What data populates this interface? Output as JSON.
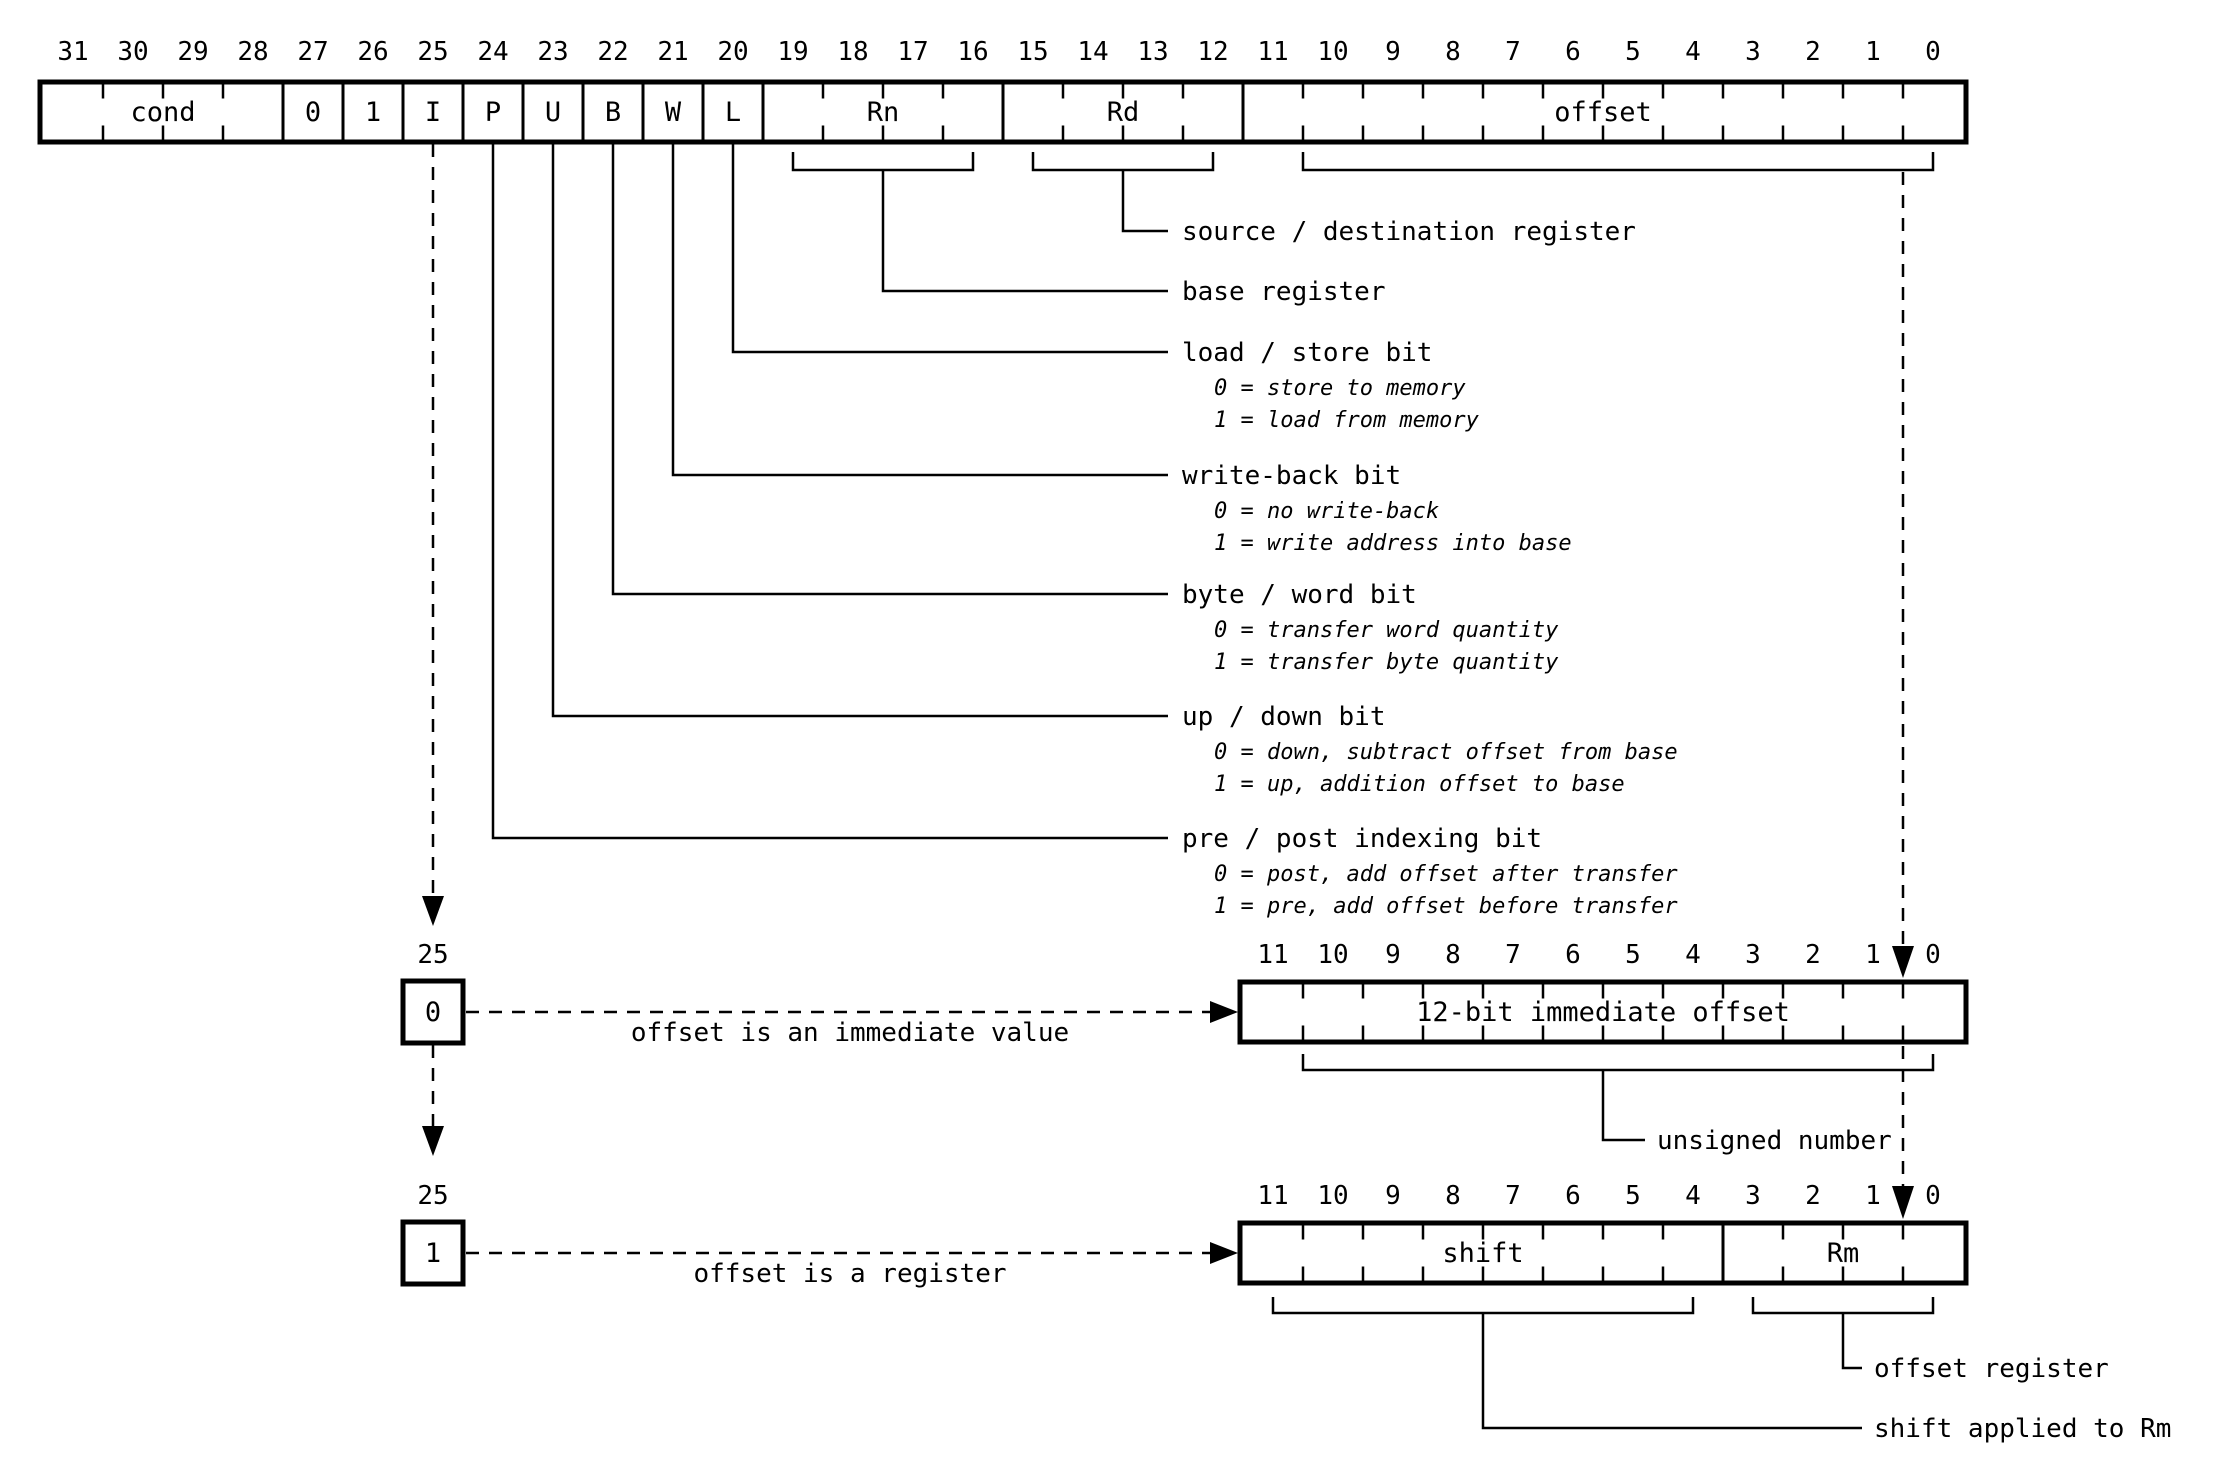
{
  "diagram": {
    "colors": {
      "ink": "#000000",
      "background": "#ffffff"
    },
    "instruction": {
      "bit_numbers": [
        "31",
        "30",
        "29",
        "28",
        "27",
        "26",
        "25",
        "24",
        "23",
        "22",
        "21",
        "20",
        "19",
        "18",
        "17",
        "16",
        "15",
        "14",
        "13",
        "12",
        "11",
        "10",
        "9",
        "8",
        "7",
        "6",
        "5",
        "4",
        "3",
        "2",
        "1",
        "0"
      ],
      "fields": {
        "cond": "cond",
        "b27": "0",
        "b26": "1",
        "i": "I",
        "p": "P",
        "u": "U",
        "b": "B",
        "w": "W",
        "l": "L",
        "rn": "Rn",
        "rd": "Rd",
        "offset": "offset"
      },
      "annotations": {
        "rd": "source / destination register",
        "rn": "base register",
        "l_title": "load / store bit",
        "l_opt0": "0 = store to memory",
        "l_opt1": "1 = load from memory",
        "w_title": "write-back bit",
        "w_opt0": "0 = no write-back",
        "w_opt1": "1 = write address into base",
        "b_title": "byte / word bit",
        "b_opt0": "0 = transfer word quantity",
        "b_opt1": "1 = transfer byte quantity",
        "u_title": "up / down bit",
        "u_opt0": "0 = down, subtract offset from base",
        "u_opt1": "1 = up, addition offset to base",
        "p_title": "pre / post indexing bit",
        "p_opt0": "0 = post, add offset after transfer",
        "p_opt1": "1 = pre, add offset before transfer"
      }
    },
    "immediate": {
      "bit_pos": "25",
      "bit_val": "0",
      "arrow_label": "offset is an immediate value",
      "bit_numbers": [
        "11",
        "10",
        "9",
        "8",
        "7",
        "6",
        "5",
        "4",
        "3",
        "2",
        "1",
        "0"
      ],
      "field": "12-bit immediate offset",
      "note": "unsigned number"
    },
    "register": {
      "bit_pos": "25",
      "bit_val": "1",
      "arrow_label": "offset is a register",
      "bit_numbers": [
        "11",
        "10",
        "9",
        "8",
        "7",
        "6",
        "5",
        "4",
        "3",
        "2",
        "1",
        "0"
      ],
      "shift_field": "shift",
      "rm_field": "Rm",
      "rm_note": "offset register",
      "shift_note": "shift applied to Rm"
    }
  }
}
